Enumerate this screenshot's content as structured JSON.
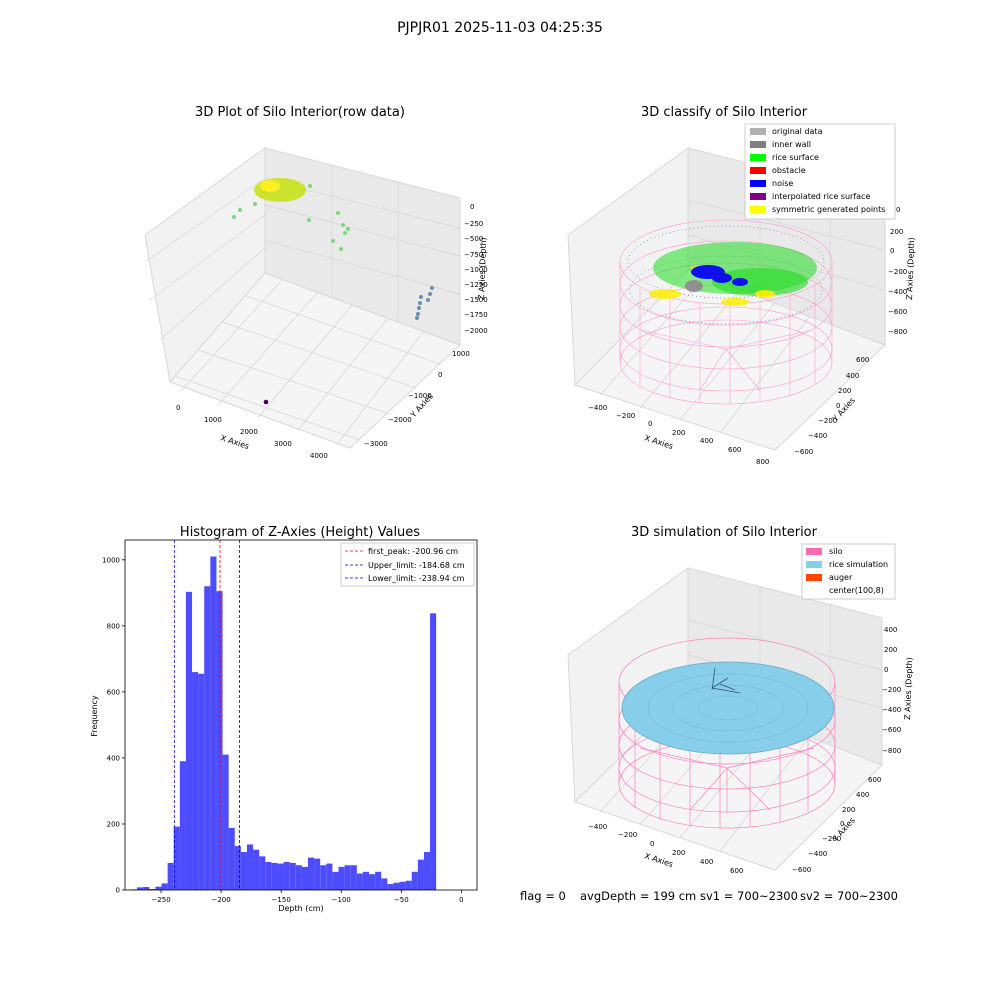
{
  "figure": {
    "suptitle": "PJPJR01 2025-11-03 04:25:35",
    "footer": {
      "flag": "flag = 0",
      "avg_depth": "avgDepth = 199 cm",
      "sv1": "sv1 = 700~2300",
      "sv2": "sv2 = 700~2300"
    }
  },
  "colors": {
    "hist_bar": "#4d4dff",
    "first_peak": "#ff0000",
    "limits": "#0000cc",
    "silo": "#ff69b4",
    "rice_sim": "#87ceeb",
    "auger": "#ff4500",
    "rice_surface": "#00ff00",
    "noise": "#0000ff",
    "inner_wall": "#808080",
    "original": "#b0b0b0",
    "obstacle": "#ff0000",
    "interpolated": "#800080",
    "symmetric": "#ffff00"
  },
  "chart_data": [
    {
      "type": "scatter",
      "title": "3D Plot of Silo Interior(row data)",
      "xlabel": "X Axies",
      "ylabel": "Y Axies",
      "zlabel": "Z Axies (Depth)",
      "x_ticks": [
        "0",
        "1000",
        "2000",
        "3000",
        "4000"
      ],
      "y_ticks": [
        "1000",
        "0",
        "−1000",
        "−2000",
        "−3000"
      ],
      "z_ticks": [
        "0",
        "−250",
        "−500",
        "−750",
        "−1000",
        "−1250",
        "−1500",
        "−1750",
        "−2000"
      ]
    },
    {
      "type": "scatter",
      "title": "3D classify of Silo Interior",
      "xlabel": "X Axies",
      "ylabel": "Y Axies",
      "zlabel": "Z Axies (Depth)",
      "x_ticks": [
        "−400",
        "−200",
        "0",
        "200",
        "400",
        "600",
        "800"
      ],
      "y_ticks": [
        "600",
        "400",
        "200",
        "0",
        "−200",
        "−400",
        "−600"
      ],
      "z_ticks": [
        "200",
        "0",
        "−200",
        "−400",
        "−600",
        "−800"
      ],
      "z_tick_top_partial": "0",
      "legend": [
        "original data",
        "inner wall",
        "rice surface",
        "obstacle",
        "noise",
        "interpolated rice surface",
        "symmetric generated points"
      ],
      "legend_placement": "top-right"
    },
    {
      "type": "bar",
      "title": "Histogram of Z-Axies (Height) Values",
      "xlabel": "Depth (cm)",
      "ylabel": "Frequency",
      "xlim": [
        -280,
        13
      ],
      "ylim": [
        0,
        1060
      ],
      "x_ticks": [
        -250,
        -200,
        -150,
        -100,
        -50,
        0
      ],
      "x_tick_labels": [
        "−250",
        "−200",
        "−150",
        "−100",
        "−50",
        "0"
      ],
      "y_ticks": [
        0,
        200,
        400,
        600,
        800,
        1000
      ],
      "y_tick_labels": [
        "0",
        "200",
        "400",
        "600",
        "800",
        "1000"
      ],
      "bin_start": -275,
      "bin_width": 5.08,
      "values": [
        2,
        8,
        9,
        3,
        10,
        20,
        82,
        192,
        390,
        903,
        660,
        655,
        920,
        1010,
        905,
        410,
        188,
        133,
        115,
        138,
        122,
        102,
        85,
        82,
        80,
        85,
        82,
        75,
        70,
        98,
        95,
        75,
        80,
        55,
        70,
        75,
        75,
        50,
        55,
        48,
        55,
        35,
        18,
        22,
        25,
        28,
        55,
        92,
        115,
        838
      ],
      "vlines": [
        {
          "name": "first_peak: -200.96 cm",
          "x": -200.96,
          "color": "#ff0000"
        },
        {
          "name": "Upper_limit: -184.68 cm",
          "x": -184.68,
          "color": "#0000cc"
        },
        {
          "name": "Lower_limit: -238.94 cm",
          "x": -238.94,
          "color": "#0000cc"
        }
      ],
      "legend_placement": "top-right",
      "grid": false
    },
    {
      "type": "scatter",
      "title": "3D simulation of Silo Interior",
      "xlabel": "X Axies",
      "ylabel": "Y Axies",
      "zlabel": "Z Axies (Depth)",
      "x_ticks": [
        "−400",
        "−200",
        "0",
        "200",
        "400",
        "600"
      ],
      "y_ticks": [
        "600",
        "400",
        "200",
        "0",
        "−200",
        "−400",
        "−600"
      ],
      "z_ticks": [
        "400",
        "200",
        "0",
        "−200",
        "−400",
        "−600",
        "−800"
      ],
      "legend": [
        "silo",
        "rice simulation",
        "auger",
        "center(100,8)"
      ],
      "legend_placement": "top-right"
    }
  ]
}
